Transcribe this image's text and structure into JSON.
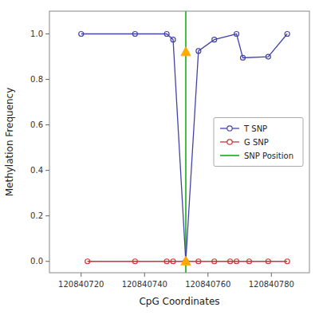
{
  "chart_data": {
    "type": "line",
    "xlabel": "CpG Coordinates",
    "ylabel": "Methylation Frequency",
    "xlim": [
      120840710,
      120840792
    ],
    "ylim": [
      -0.05,
      1.1
    ],
    "xticks": [
      120840720,
      120840740,
      120840760,
      120840780
    ],
    "yticks": [
      {
        "value": 0.0,
        "label": "0.0"
      },
      0.2,
      0.4,
      0.6,
      0.8,
      {
        "value": 1.0,
        "label": "1.0"
      }
    ],
    "grid": false,
    "legend": "center right",
    "series": [
      {
        "name": "T SNP",
        "type": "line",
        "color": "#4444aa",
        "marker": "circle",
        "x": [
          120840720,
          120840737,
          120840747,
          120840749,
          120840753,
          120840757,
          120840762,
          120840769,
          120840771,
          120840779,
          120840785
        ],
        "values": [
          1.0,
          1.0,
          1.0,
          0.975,
          0.0,
          0.925,
          0.975,
          1.0,
          0.895,
          0.9,
          1.0
        ]
      },
      {
        "name": "G SNP",
        "type": "line",
        "color": "#cc3333",
        "marker": "circle",
        "x": [
          120840722,
          120840737,
          120840747,
          120840749,
          120840753,
          120840757,
          120840762,
          120840767,
          120840769,
          120840773,
          120840779,
          120840785
        ],
        "values": [
          0.0,
          0.0,
          0.0,
          0.0,
          0.0,
          0.0,
          0.0,
          0.0,
          0.0,
          0.0,
          0.0,
          0.0
        ]
      },
      {
        "name": "SNP Position",
        "type": "vline",
        "color": "#44bb44",
        "x": [
          120840753
        ]
      }
    ],
    "points": {
      "x": [
        120840753,
        120840753
      ],
      "values": [
        0.92,
        0.0
      ],
      "color": "#ffaa00",
      "marker": "triangle"
    }
  }
}
